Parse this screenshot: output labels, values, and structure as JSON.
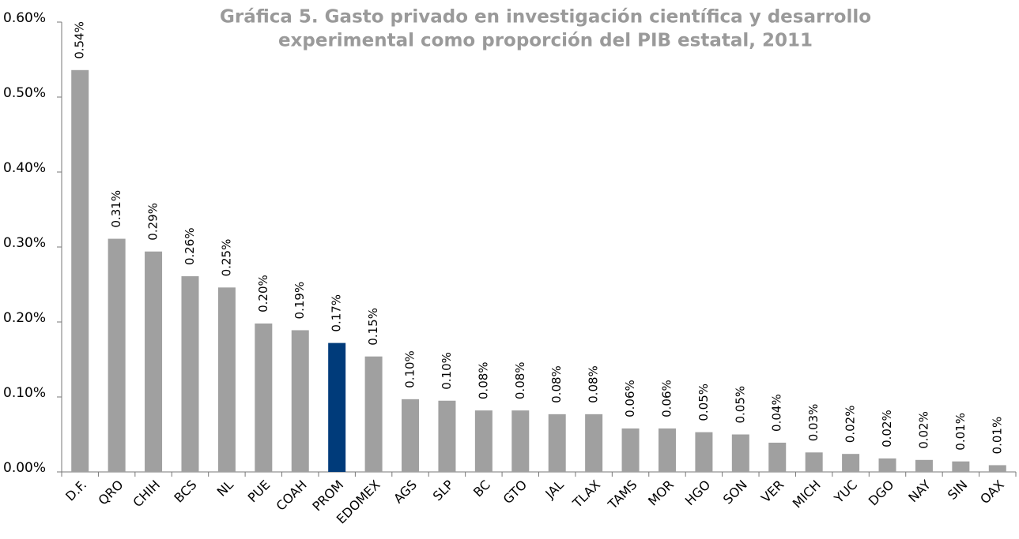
{
  "chart_data": {
    "type": "bar",
    "title": [
      "Gráfica 5. Gasto privado en investigación científica y desarrollo",
      "experimental como proporción del PIB estatal, 2011"
    ],
    "categories": [
      "D.F.",
      "QRO",
      "CHIH",
      "BCS",
      "NL",
      "PUE",
      "COAH",
      "PROM",
      "EDOMEX",
      "AGS",
      "SLP",
      "BC",
      "GTO",
      "JAL",
      "TLAX",
      "TAMS",
      "MOR",
      "HGO",
      "SON",
      "VER",
      "MICH",
      "YUC",
      "DGO",
      "NAY",
      "SIN",
      "OAX"
    ],
    "values": [
      0.536,
      0.311,
      0.294,
      0.261,
      0.246,
      0.198,
      0.189,
      0.172,
      0.154,
      0.097,
      0.095,
      0.082,
      0.082,
      0.077,
      0.077,
      0.058,
      0.058,
      0.053,
      0.05,
      0.039,
      0.026,
      0.024,
      0.018,
      0.016,
      0.014,
      0.009
    ],
    "value_labels": [
      "0.54%",
      "0.31%",
      "0.29%",
      "0.26%",
      "0.25%",
      "0.20%",
      "0.19%",
      "0.17%",
      "0.15%",
      "0.10%",
      "0.10%",
      "0.08%",
      "0.08%",
      "0.08%",
      "0.08%",
      "0.06%",
      "0.06%",
      "0.05%",
      "0.05%",
      "0.04%",
      "0.03%",
      "0.02%",
      "0.02%",
      "0.02%",
      "0.01%",
      "0.01%"
    ],
    "colors": [
      "#a0a0a0",
      "#a0a0a0",
      "#a0a0a0",
      "#a0a0a0",
      "#a0a0a0",
      "#a0a0a0",
      "#a0a0a0",
      "#003b7a",
      "#a0a0a0",
      "#a0a0a0",
      "#a0a0a0",
      "#a0a0a0",
      "#a0a0a0",
      "#a0a0a0",
      "#a0a0a0",
      "#a0a0a0",
      "#a0a0a0",
      "#a0a0a0",
      "#a0a0a0",
      "#a0a0a0",
      "#a0a0a0",
      "#a0a0a0",
      "#a0a0a0",
      "#a0a0a0",
      "#a0a0a0",
      "#a0a0a0"
    ],
    "ylim": [
      0,
      0.6
    ],
    "yticks": [
      {
        "value": 0,
        "label": "0.00%"
      },
      {
        "value": 0.1,
        "label": "0.10%"
      },
      {
        "value": 0.2,
        "label": "0.20%"
      },
      {
        "value": 0.3,
        "label": "0.30%"
      },
      {
        "value": 0.4,
        "label": "0.40%"
      },
      {
        "value": 0.5,
        "label": "0.50%"
      },
      {
        "value": 0.6,
        "label": "0.60%"
      }
    ],
    "grid": false
  }
}
